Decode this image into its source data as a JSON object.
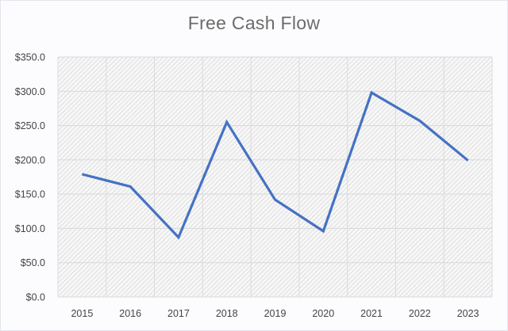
{
  "chart_data": {
    "type": "line",
    "title": "Free Cash Flow",
    "xlabel": "",
    "ylabel": "",
    "categories": [
      "2015",
      "2016",
      "2017",
      "2018",
      "2019",
      "2020",
      "2021",
      "2022",
      "2023"
    ],
    "series": [
      {
        "name": "Free Cash Flow",
        "values": [
          179,
          161,
          87,
          255,
          142,
          96,
          298,
          257,
          199
        ],
        "color": "#4472c4"
      }
    ],
    "ylim": [
      0,
      350
    ],
    "yticks": [
      0,
      50,
      100,
      150,
      200,
      250,
      300,
      350
    ],
    "ytick_labels": [
      "$0.0",
      "$50.0",
      "$100.0",
      "$150.0",
      "$200.0",
      "$250.0",
      "$300.0",
      "$350.0"
    ],
    "grid": true,
    "legend": null
  }
}
